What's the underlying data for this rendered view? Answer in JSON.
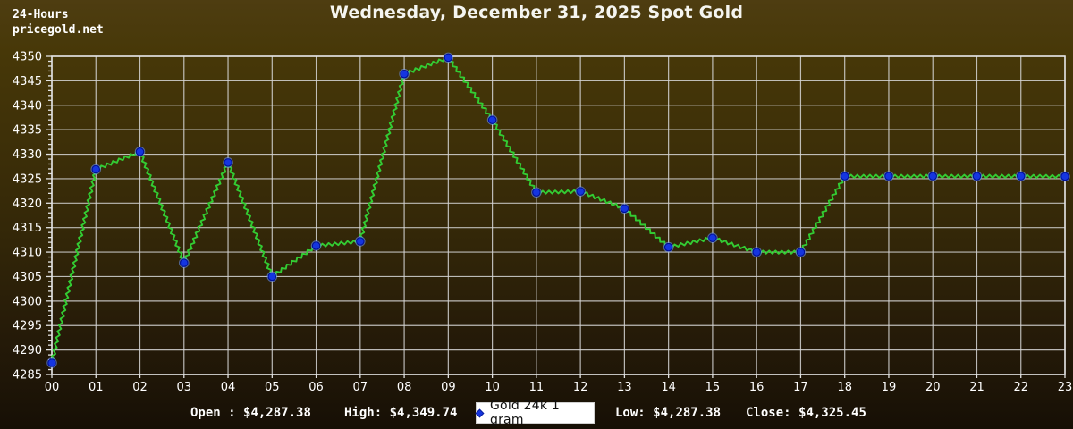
{
  "header": {
    "line1": "24-Hours",
    "line2": "pricegold.net"
  },
  "title": "Wednesday, December 31, 2025 Spot Gold",
  "legend": {
    "label": "Gold 24k 1 gram"
  },
  "stats": {
    "open_label": "Open :",
    "open_value": "$4,287.38",
    "high_label": "High:",
    "high_value": "$4,349.74",
    "low_label": "Low:",
    "low_value": "$4,287.38",
    "close_label": "Close:",
    "close_value": "$4,325.45"
  },
  "chart_data": {
    "type": "line",
    "title": "Wednesday, December 31, 2025 Spot Gold",
    "x": [
      "00",
      "01",
      "02",
      "03",
      "04",
      "05",
      "06",
      "07",
      "08",
      "09",
      "10",
      "11",
      "12",
      "13",
      "14",
      "15",
      "16",
      "17",
      "18",
      "19",
      "20",
      "21",
      "22",
      "23"
    ],
    "series": [
      {
        "name": "Gold 24k 1 gram",
        "values": [
          4287.38,
          4326.9,
          4330.5,
          4307.8,
          4328.3,
          4305.0,
          4311.3,
          4312.2,
          4346.4,
          4349.74,
          4337.0,
          4322.2,
          4322.4,
          4318.9,
          4311.0,
          4312.9,
          4310.0,
          4310.0,
          4325.5,
          4325.5,
          4325.5,
          4325.5,
          4325.5,
          4325.45
        ]
      }
    ],
    "open": 4287.38,
    "high": 4349.74,
    "low": 4287.38,
    "close": 4325.45,
    "xlabel": "",
    "ylabel": "",
    "ylim": [
      4285,
      4350
    ],
    "ytick_step": 5,
    "yminor_step": 1,
    "grid": true,
    "legend_position": "bottom-center",
    "colors": {
      "line": "#33cc33",
      "marker_fill": "#1535e0",
      "marker_edge": "#001099",
      "grid": "#d6d6d6",
      "axis_text": "#ffffff",
      "plot_border": "#e2e2e2"
    }
  }
}
